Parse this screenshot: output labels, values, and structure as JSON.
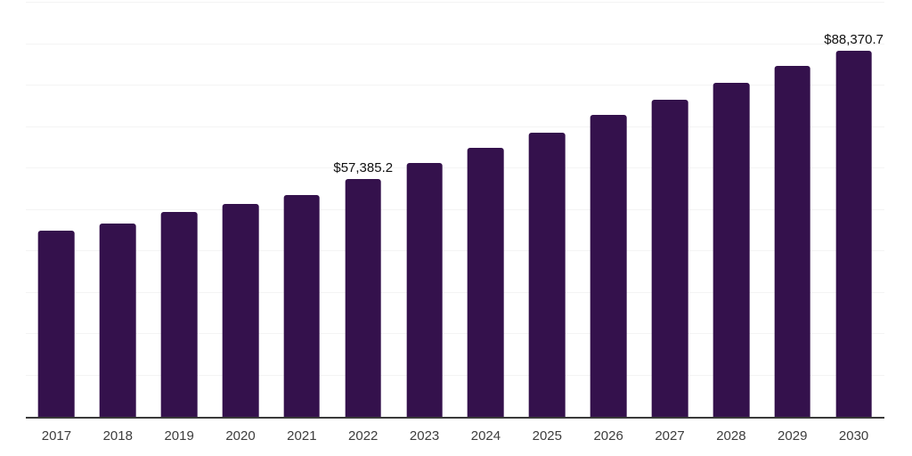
{
  "chart_data": {
    "type": "bar",
    "title": "",
    "xlabel": "",
    "ylabel": "",
    "categories": [
      "2017",
      "2018",
      "2019",
      "2020",
      "2021",
      "2022",
      "2023",
      "2024",
      "2025",
      "2026",
      "2027",
      "2028",
      "2029",
      "2030"
    ],
    "values": [
      44900,
      46600,
      49500,
      51300,
      53600,
      57385.2,
      61200,
      64900,
      68600,
      72800,
      76600,
      80700,
      84700,
      88370.7
    ],
    "value_prefix": "$",
    "value_labels": [
      {
        "index": 5,
        "category": "2022",
        "text": "$57,385.2",
        "value": 57385.2
      },
      {
        "index": 13,
        "category": "2030",
        "text": "$88,370.7",
        "value": 88370.7
      }
    ],
    "ylim": [
      0,
      100000
    ],
    "gridline_step": 10000,
    "grid": "horizontal",
    "legend_position": "none"
  },
  "colors": {
    "background": "#ffffff",
    "bar": "#34114c",
    "gridline": "#f4f4f4",
    "axis_line": "#3a3a3a",
    "value_label_text": "#101010",
    "tick_label_text": "#3d3d3d"
  }
}
